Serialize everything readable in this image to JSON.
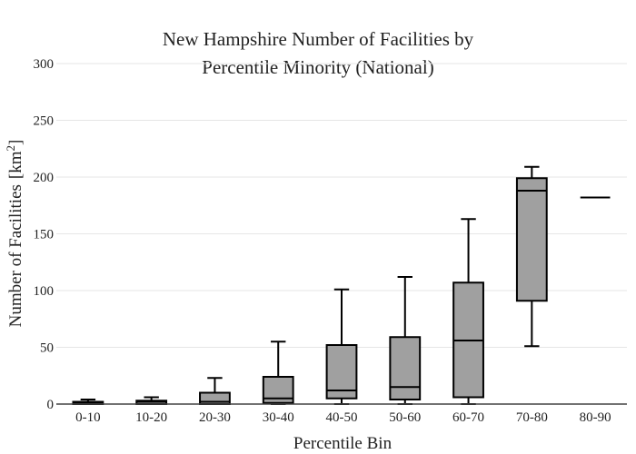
{
  "chart_data": {
    "type": "box",
    "title_lines": [
      "New Hampshire Number of Facilities by",
      "Percentile Minority (National)"
    ],
    "xlabel": "Percentile Bin",
    "ylabel": "Number of Facilities",
    "ylabel_unit": "km",
    "ylabel_unit_sup": "2",
    "ylim": [
      0,
      300
    ],
    "yticks": [
      0,
      50,
      100,
      150,
      200,
      250,
      300
    ],
    "grid": true,
    "categories": [
      "0-10",
      "10-20",
      "20-30",
      "30-40",
      "40-50",
      "50-60",
      "60-70",
      "70-80",
      "80-90"
    ],
    "boxes": [
      {
        "category": "0-10",
        "min": 0,
        "q1": 0,
        "median": 1,
        "q3": 2,
        "max": 4
      },
      {
        "category": "10-20",
        "min": 0,
        "q1": 0,
        "median": 2,
        "q3": 3,
        "max": 6
      },
      {
        "category": "20-30",
        "min": 0,
        "q1": 0,
        "median": 2,
        "q3": 10,
        "max": 23
      },
      {
        "category": "30-40",
        "min": 0,
        "q1": 1,
        "median": 5,
        "q3": 24,
        "max": 55
      },
      {
        "category": "40-50",
        "min": 0,
        "q1": 5,
        "median": 12,
        "q3": 52,
        "max": 101
      },
      {
        "category": "50-60",
        "min": 0,
        "q1": 4,
        "median": 15,
        "q3": 59,
        "max": 112
      },
      {
        "category": "60-70",
        "min": 0,
        "q1": 6,
        "median": 56,
        "q3": 107,
        "max": 163
      },
      {
        "category": "70-80",
        "min": 51,
        "q1": 91,
        "median": 188,
        "q3": 199,
        "max": 209
      },
      {
        "category": "80-90",
        "min": 182,
        "q1": 182,
        "median": 182,
        "q3": 182,
        "max": 182
      }
    ],
    "colors": {
      "box_fill": "#a0a0a0",
      "box_stroke": "#000000",
      "grid": "#e6e6e6"
    }
  }
}
